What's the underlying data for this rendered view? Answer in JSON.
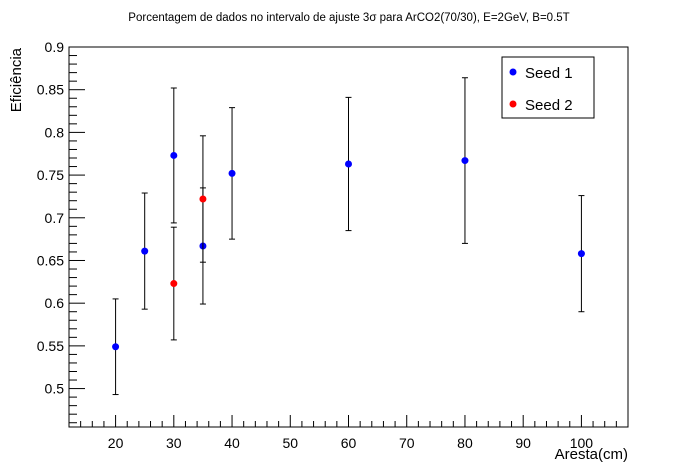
{
  "chart_data": {
    "type": "scatter",
    "title": "Porcentagem de dados no intervalo de ajuste 3σ para ArCO2(70/30), E=2GeV, B=0.5T",
    "xlabel": "Aresta(cm)",
    "ylabel": "Eficiência",
    "xlim": [
      12,
      108
    ],
    "ylim": [
      0.455,
      0.9
    ],
    "x_ticks": [
      "20",
      "30",
      "40",
      "50",
      "60",
      "70",
      "80",
      "90",
      "100"
    ],
    "y_ticks": [
      "0.5",
      "0.55",
      "0.6",
      "0.65",
      "0.7",
      "0.75",
      "0.8",
      "0.85",
      "0.9"
    ],
    "legend_position": "top-right",
    "grid": false,
    "series": [
      {
        "name": "Seed 1",
        "color": "#0000ff",
        "points": [
          {
            "x": 20,
            "y": 0.549,
            "err": 0.056
          },
          {
            "x": 25,
            "y": 0.661,
            "err": 0.068
          },
          {
            "x": 30,
            "y": 0.773,
            "err": 0.079
          },
          {
            "x": 35,
            "y": 0.667,
            "err": 0.068
          },
          {
            "x": 40,
            "y": 0.752,
            "err": 0.077
          },
          {
            "x": 60,
            "y": 0.763,
            "err": 0.078
          },
          {
            "x": 80,
            "y": 0.767,
            "err": 0.097
          },
          {
            "x": 100,
            "y": 0.658,
            "err": 0.068
          }
        ]
      },
      {
        "name": "Seed 2",
        "color": "#ff0000",
        "points": [
          {
            "x": 30,
            "y": 0.623,
            "err": 0.066
          },
          {
            "x": 35,
            "y": 0.722,
            "err": 0.074
          }
        ]
      }
    ]
  }
}
